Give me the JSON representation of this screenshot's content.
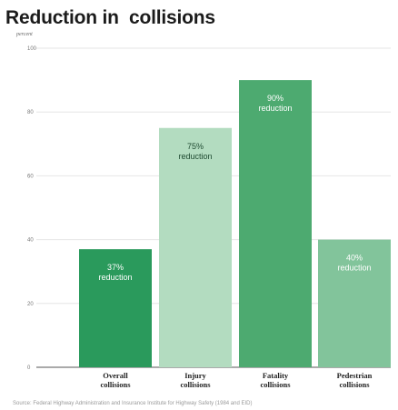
{
  "title": "Reduction in  collisions",
  "unit_label": "percent",
  "source": "Source: Federal Highway Administration and Insurance Institute for Highway Safety (1984 and EID)",
  "colors": {
    "overall": "#2a9a5c",
    "injury": "#b3dcc0",
    "fatality": "#4daa70",
    "pedestrian": "#82c49b",
    "gridline": "#e6e6e6",
    "axis_text": "#777777",
    "bar_label_dark": "#1f4a31",
    "bar_label_light": "#ffffff"
  },
  "chart_data": {
    "type": "bar",
    "title": "Reduction in  collisions",
    "ylabel": "percent",
    "ylim": [
      0,
      100
    ],
    "yticks": [
      0,
      20,
      40,
      60,
      80,
      100
    ],
    "grid": true,
    "legend": "none",
    "categories": [
      "Overall collisions",
      "Injury collisions",
      "Fatality collisions",
      "Pedestrian collisions"
    ],
    "category_lines": [
      [
        "Overall",
        "collisions"
      ],
      [
        "Injury",
        "collisions"
      ],
      [
        "Fatality",
        "collisions"
      ],
      [
        "Pedestrian",
        "collisions"
      ]
    ],
    "values": [
      37,
      75,
      90,
      40
    ],
    "data_labels": [
      [
        "37%",
        "reduction"
      ],
      [
        "75%",
        "reduction"
      ],
      [
        "90%",
        "reduction"
      ],
      [
        "40%",
        "reduction"
      ]
    ]
  }
}
